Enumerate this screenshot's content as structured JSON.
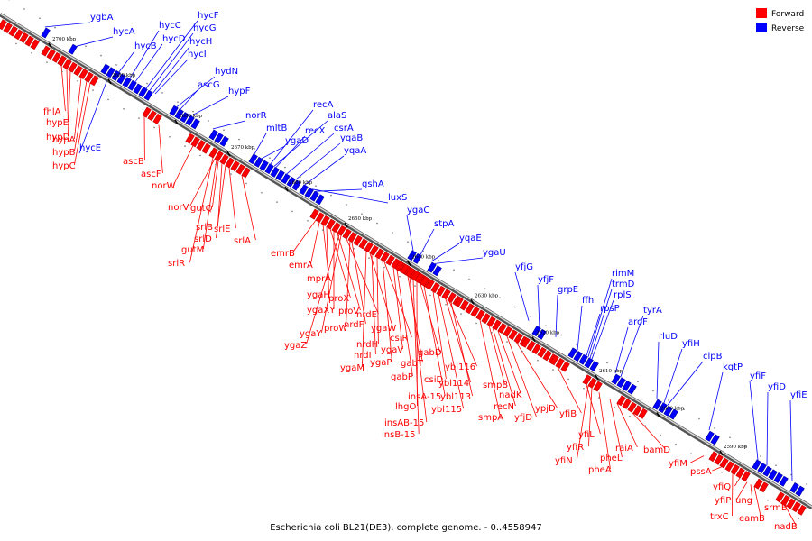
{
  "title": "Escherichia coli BL21(DE3), complete genome. - 0..4558947",
  "legend": [
    {
      "label": "Forward",
      "color": "#ff0000"
    },
    {
      "label": "Reverse",
      "color": "#0000ff"
    }
  ],
  "ticks": [
    "2700 kbp",
    "2690 kbp",
    "2680 kbp",
    "2670 kbp",
    "2660 kbp",
    "2650 kbp",
    "2640 kbp",
    "2630 kbp",
    "2620 kbp",
    "2610 kbp",
    "2600 kbp",
    "2590 kbp"
  ],
  "reverse_genes": [
    "ygbA",
    "hycA",
    "hycB",
    "hycC",
    "hycD",
    "hycF",
    "hycG",
    "hycH",
    "hycI",
    "hydN",
    "ascG",
    "hypF",
    "hycE",
    "norR",
    "mltB",
    "recA",
    "alaS",
    "recX",
    "csrA",
    "ygaD",
    "yqaB",
    "yqaA",
    "gshA",
    "luxS",
    "ygaC",
    "stpA",
    "yqaE",
    "ygaU",
    "yfjG",
    "yfjF",
    "grpE",
    "ffh",
    "rimM",
    "trmD",
    "rplS",
    "rpsP",
    "tyrA",
    "aroF",
    "rluD",
    "yfiH",
    "clpB",
    "kgtP",
    "yfiF",
    "yfiD",
    "yfiE"
  ],
  "forward_genes": [
    "fhlA",
    "hypE",
    "hypD",
    "hypA",
    "hypB",
    "hypC",
    "ascB",
    "ascF",
    "norW",
    "norV",
    "gutQ",
    "srlB",
    "srlD",
    "srlE",
    "gutM",
    "srlA",
    "srlR",
    "emrB",
    "emrA",
    "mprA",
    "ygaH",
    "proX",
    "ygaXY",
    "proV",
    "nrdE",
    "proW",
    "nrdF",
    "ygaY",
    "ygaZ",
    "ygaW",
    "csiR",
    "nrdH",
    "nrdI",
    "ygaV",
    "ygaM",
    "ygaP",
    "gabD",
    "gabT",
    "gabP",
    "ybl116",
    "csiD",
    "ybl114",
    "smpB",
    "insA-15",
    "ybl113",
    "nadK",
    "lhgO",
    "ybl115",
    "recN",
    "insAB-15",
    "ypjD",
    "smpA",
    "yfjD",
    "insB-15",
    "yfiB",
    "yfiL",
    "raiA",
    "yfiR",
    "pheL",
    "bamD",
    "yfiN",
    "pheA",
    "yfiM",
    "pssA",
    "yfiQ",
    "yfiP",
    "ung",
    "srmB",
    "trxC",
    "eamB",
    "nadB"
  ]
}
